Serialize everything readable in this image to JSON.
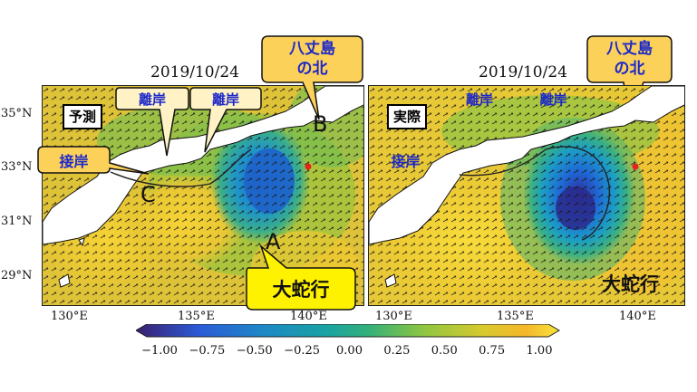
{
  "panels": [
    {
      "date": "2019/10/24",
      "tag": "予測",
      "callouts": {
        "hachijo": [
          "八丈島",
          "の北"
        ],
        "rigan1": "離岸",
        "rigan2": "離岸",
        "setsugan": "接岸",
        "daidako": "大蛇行"
      },
      "letters": [
        "A",
        "B",
        "C"
      ]
    },
    {
      "date": "2019/10/24",
      "tag": "実際",
      "callouts": {
        "hachijo": [
          "八丈島",
          "の北"
        ],
        "rigan1": "離岸",
        "rigan2": "離岸",
        "setsugan": "接岸",
        "daidako": "大蛇行"
      }
    }
  ],
  "axes": {
    "y_ticks": [
      "35°N",
      "33°N",
      "31°N",
      "29°N"
    ],
    "x_ticks": [
      "130°E",
      "135°E",
      "140°E"
    ]
  },
  "colorbar": {
    "ticks": [
      "−1.00",
      "−0.75",
      "−0.50",
      "−0.25",
      "0.00",
      "0.25",
      "0.50",
      "0.75",
      "1.00"
    ],
    "colors": [
      "#3b1f6e",
      "#2a5bd7",
      "#1e88c6",
      "#19a3a3",
      "#33b07a",
      "#8fc640",
      "#d8c92e",
      "#f5b72a",
      "#f8e33c"
    ]
  },
  "colors": {
    "callout_fill": "#fcd15a",
    "callout_light": "#fff3c6",
    "callout_text": "#1d28c9",
    "land": "#ffffff",
    "marker": "#e8221b"
  }
}
